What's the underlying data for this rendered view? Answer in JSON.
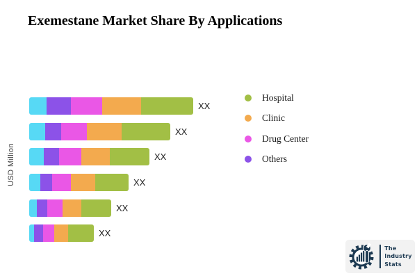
{
  "title": "Exemestane Market Share By Applications",
  "y_axis": {
    "label": "USD Million"
  },
  "legend": {
    "position": "right",
    "items": [
      {
        "label": "Hospital",
        "color": "#a2bf45"
      },
      {
        "label": "Clinic",
        "color": "#f3aa4e"
      },
      {
        "label": "Drug Center",
        "color": "#ea57e6"
      },
      {
        "label": "Others",
        "color": "#8c52e8"
      }
    ]
  },
  "chart_data": {
    "type": "bar",
    "orientation": "horizontal",
    "stacked": true,
    "title": "Exemestane Market Share By Applications",
    "xlabel": "",
    "ylabel": "USD Million",
    "grid": false,
    "legend_position": "right",
    "value_labels": [
      "XX",
      "XX",
      "XX",
      "XX",
      "XX",
      "XX"
    ],
    "series": [
      {
        "name": "",
        "in_legend": false,
        "color": "#57d9f5",
        "values": [
          25,
          23,
          21,
          16,
          11,
          7
        ]
      },
      {
        "name": "Others",
        "in_legend": true,
        "color": "#8c52e8",
        "values": [
          35,
          23,
          22,
          17,
          15,
          13
        ]
      },
      {
        "name": "Drug Center",
        "in_legend": true,
        "color": "#ea57e6",
        "values": [
          45,
          37,
          32,
          27,
          22,
          16
        ]
      },
      {
        "name": "Clinic",
        "in_legend": true,
        "color": "#f3aa4e",
        "values": [
          56,
          50,
          41,
          35,
          27,
          20
        ]
      },
      {
        "name": "Hospital",
        "in_legend": true,
        "color": "#a2bf45",
        "values": [
          75,
          70,
          57,
          48,
          43,
          37
        ]
      }
    ],
    "bar_totals": [
      236,
      203,
      173,
      143,
      118,
      93
    ]
  },
  "logo": {
    "lines": [
      "The",
      "Industry",
      "Stats"
    ],
    "color": "#1d3a52",
    "background": "#f2f2f2"
  }
}
